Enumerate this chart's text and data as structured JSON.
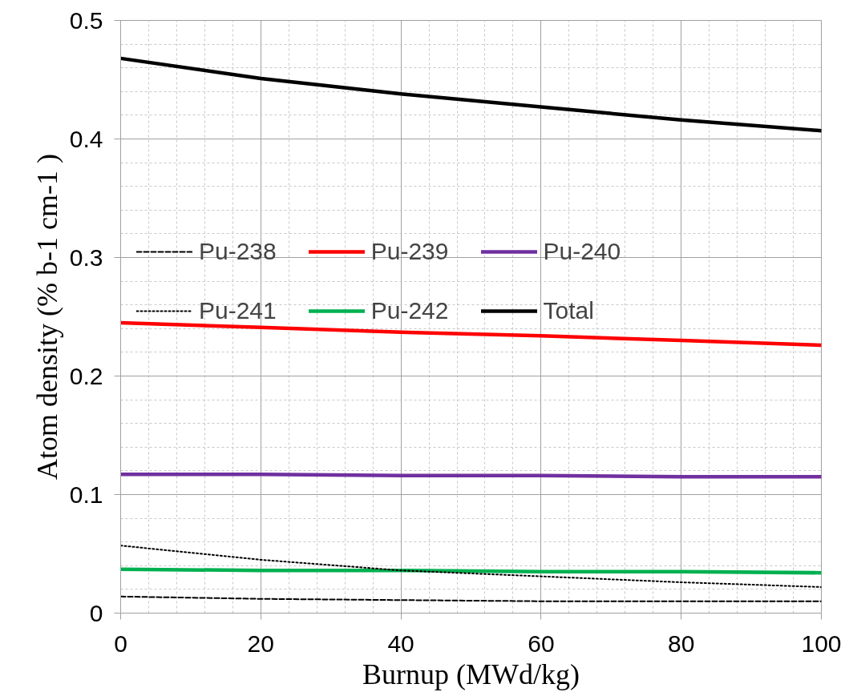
{
  "chart_data": {
    "type": "line",
    "xlabel": "Burnup (MWd/kg)",
    "ylabel": "Atom density (% b-1 cm-1 )",
    "x": [
      0,
      20,
      40,
      60,
      80,
      100
    ],
    "xlim": [
      0,
      100
    ],
    "xticks": [
      0,
      20,
      40,
      60,
      80,
      100
    ],
    "ylim": [
      0,
      0.5
    ],
    "yticks": [
      0,
      0.1,
      0.2,
      0.3,
      0.4,
      0.5
    ],
    "grid": true,
    "legend": "top",
    "marker": "none",
    "line_style": "solid",
    "series": [
      {
        "name": "Pu-238",
        "color": "#000000",
        "line_style": "dashed",
        "values": [
          0.014,
          0.012,
          0.011,
          0.01,
          0.01,
          0.01
        ]
      },
      {
        "name": "Pu-239",
        "color": "#ff0000",
        "values": [
          0.245,
          0.241,
          0.237,
          0.234,
          0.23,
          0.226
        ]
      },
      {
        "name": "Pu-240",
        "color": "#7030a0",
        "values": [
          0.117,
          0.117,
          0.116,
          0.116,
          0.115,
          0.115
        ]
      },
      {
        "name": "Pu-241",
        "color": "#000000",
        "line_style": "dotted",
        "values": [
          0.057,
          0.045,
          0.036,
          0.031,
          0.026,
          0.022
        ]
      },
      {
        "name": "Pu-242",
        "color": "#00b050",
        "values": [
          0.037,
          0.036,
          0.036,
          0.035,
          0.035,
          0.034
        ]
      },
      {
        "name": "Total",
        "color": "#000000",
        "values": [
          0.468,
          0.451,
          0.438,
          0.427,
          0.416,
          0.407
        ]
      }
    ]
  }
}
